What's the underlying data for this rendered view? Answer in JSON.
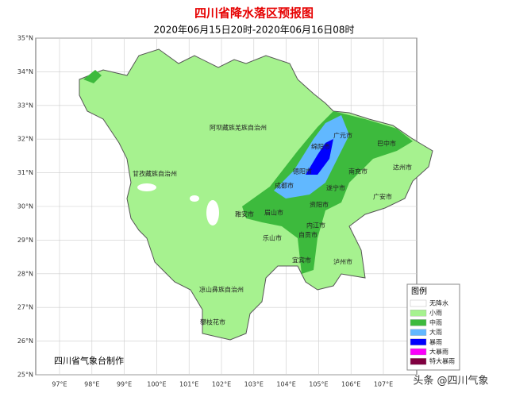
{
  "header": {
    "title": "四川省降水落区预报图",
    "subtitle": "2020年06月15日20时-2020年06月16日08时"
  },
  "lat_labels": [
    "35°N",
    "34°N",
    "33°N",
    "32°N",
    "31°N",
    "30°N",
    "29°N",
    "28°N",
    "27°N",
    "26°N",
    "25°N"
  ],
  "lon_labels": [
    "97°E",
    "98°E",
    "99°E",
    "100°E",
    "101°E",
    "102°E",
    "103°E",
    "104°E",
    "105°E",
    "106°E",
    "107°E"
  ],
  "cities": [
    {
      "label": "阿坝藏族羌族自治州"
    },
    {
      "label": "甘孜藏族自治州"
    },
    {
      "label": "绵阳市"
    },
    {
      "label": "广元市"
    },
    {
      "label": "巴中市"
    },
    {
      "label": "达州市"
    },
    {
      "label": "南充市"
    },
    {
      "label": "德阳市"
    },
    {
      "label": "成都市"
    },
    {
      "label": "遂宁市"
    },
    {
      "label": "广安市"
    },
    {
      "label": "资阳市"
    },
    {
      "label": "雅安市"
    },
    {
      "label": "眉山市"
    },
    {
      "label": "乐山市"
    },
    {
      "label": "内江市"
    },
    {
      "label": "自贡市"
    },
    {
      "label": "宜宾市"
    },
    {
      "label": "泸州市"
    },
    {
      "label": "凉山彝族自治州"
    },
    {
      "label": "攀枝花市"
    }
  ],
  "legend": {
    "title": "图例",
    "items": [
      {
        "label": "无降水",
        "color": "#ffffff"
      },
      {
        "label": "小雨",
        "color": "#a6f28f"
      },
      {
        "label": "中雨",
        "color": "#3dba3d"
      },
      {
        "label": "大雨",
        "color": "#61b8ff"
      },
      {
        "label": "暴雨",
        "color": "#0000fe"
      },
      {
        "label": "大暴雨",
        "color": "#fa00fa"
      },
      {
        "label": "特大暴雨",
        "color": "#800040"
      }
    ]
  },
  "credit": "四川省气象台制作",
  "watermark": "头条 @四川气象"
}
